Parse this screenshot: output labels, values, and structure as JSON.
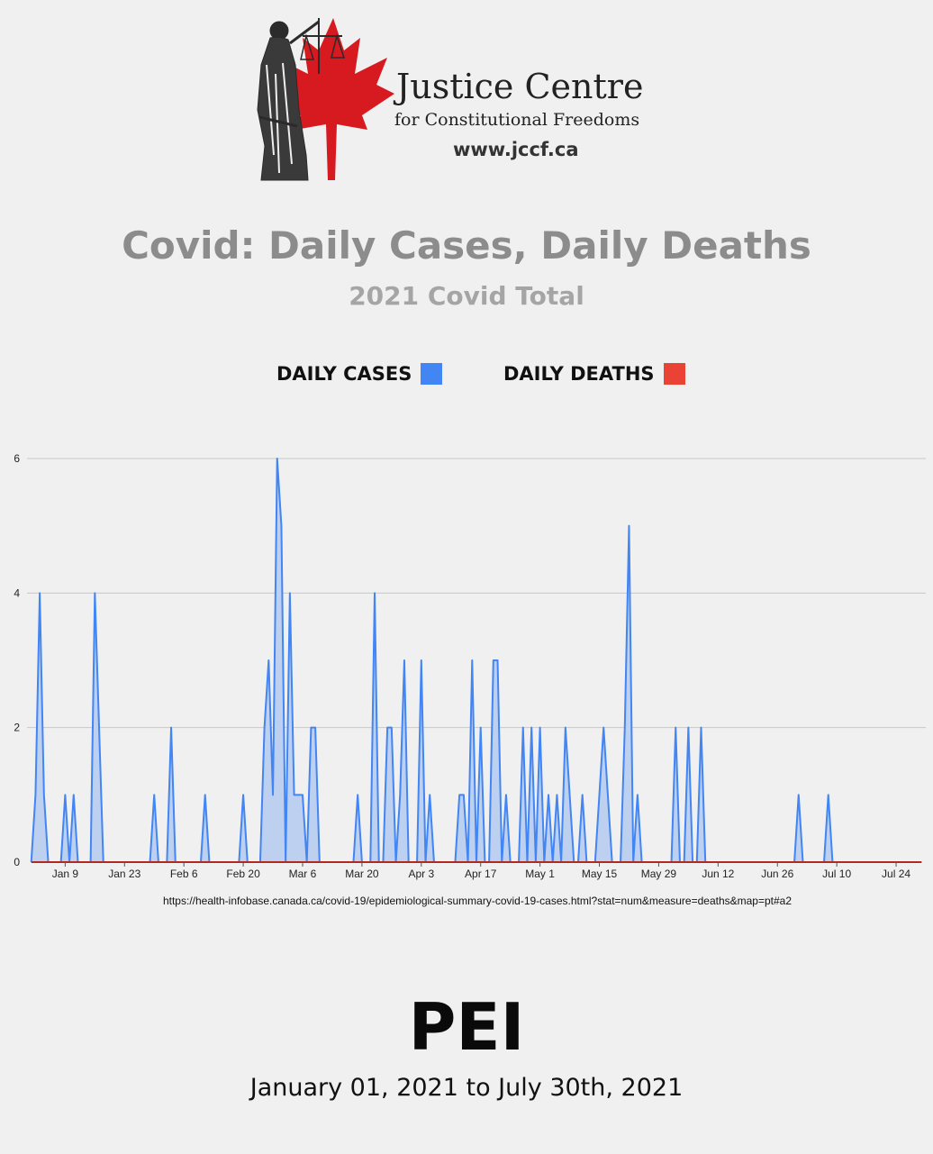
{
  "branding": {
    "org_name": "Justice Centre",
    "org_subtitle": "for Constitutional Freedoms",
    "website": "www.jccf.ca",
    "logo_icon": "maple-leaf-lady-justice-icon",
    "leaf_color": "#d71920"
  },
  "footer": {
    "source_url": "https://health-infobase.canada.ca/covid-19/epidemiological-summary-covid-19-cases.html?stat=num&measure=deaths&map=pt#a2",
    "region": "PEI",
    "date_range": "January 01, 2021 to July 30th, 2021"
  },
  "chart_data": {
    "type": "area",
    "title": "Covid: Daily Cases, Daily Deaths",
    "subtitle": "2021 Covid Total",
    "x_start": "2021-01-01",
    "x_end": "2021-07-30",
    "xlim": [
      "2020-12-31",
      "2021-07-31"
    ],
    "ylim": [
      0,
      6
    ],
    "y_ticks": [
      "0",
      "2",
      "4",
      "6"
    ],
    "x_tick_dates": [
      "2021-01-09",
      "2021-01-23",
      "2021-02-06",
      "2021-02-20",
      "2021-03-06",
      "2021-03-20",
      "2021-04-03",
      "2021-04-17",
      "2021-05-01",
      "2021-05-15",
      "2021-05-29",
      "2021-06-12",
      "2021-06-26",
      "2021-07-10",
      "2021-07-24"
    ],
    "x_tick_labels": [
      "Jan 9",
      "Jan 23",
      "Feb 6",
      "Feb 20",
      "Mar 6",
      "Mar 20",
      "Apr 3",
      "Apr 17",
      "May 1",
      "May 15",
      "May 29",
      "Jun 12",
      "Jun 26",
      "Jul 10",
      "Jul 24"
    ],
    "grid": true,
    "legend_position": "top",
    "series": [
      {
        "name": "DAILY CASES",
        "color": "#4285f4",
        "fill": "#bdd0f0",
        "points": [
          [
            "2021-01-01",
            0
          ],
          [
            "2021-01-02",
            1
          ],
          [
            "2021-01-03",
            4
          ],
          [
            "2021-01-04",
            1
          ],
          [
            "2021-01-05",
            0
          ],
          [
            "2021-01-08",
            0
          ],
          [
            "2021-01-09",
            1
          ],
          [
            "2021-01-10",
            0
          ],
          [
            "2021-01-11",
            1
          ],
          [
            "2021-01-12",
            0
          ],
          [
            "2021-01-15",
            0
          ],
          [
            "2021-01-16",
            4
          ],
          [
            "2021-01-17",
            2
          ],
          [
            "2021-01-18",
            0
          ],
          [
            "2021-01-29",
            0
          ],
          [
            "2021-01-30",
            1
          ],
          [
            "2021-01-31",
            0
          ],
          [
            "2021-02-02",
            0
          ],
          [
            "2021-02-03",
            2
          ],
          [
            "2021-02-04",
            0
          ],
          [
            "2021-02-10",
            0
          ],
          [
            "2021-02-11",
            1
          ],
          [
            "2021-02-12",
            0
          ],
          [
            "2021-02-19",
            0
          ],
          [
            "2021-02-20",
            1
          ],
          [
            "2021-02-21",
            0
          ],
          [
            "2021-02-24",
            0
          ],
          [
            "2021-02-25",
            2
          ],
          [
            "2021-02-26",
            3
          ],
          [
            "2021-02-27",
            1
          ],
          [
            "2021-02-28",
            6
          ],
          [
            "2021-03-01",
            5
          ],
          [
            "2021-03-02",
            0
          ],
          [
            "2021-03-03",
            4
          ],
          [
            "2021-03-04",
            1
          ],
          [
            "2021-03-05",
            1
          ],
          [
            "2021-03-06",
            1
          ],
          [
            "2021-03-07",
            0
          ],
          [
            "2021-03-08",
            2
          ],
          [
            "2021-03-09",
            2
          ],
          [
            "2021-03-10",
            0
          ],
          [
            "2021-03-18",
            0
          ],
          [
            "2021-03-19",
            1
          ],
          [
            "2021-03-20",
            0
          ],
          [
            "2021-03-22",
            0
          ],
          [
            "2021-03-23",
            4
          ],
          [
            "2021-03-24",
            0
          ],
          [
            "2021-03-25",
            0
          ],
          [
            "2021-03-26",
            2
          ],
          [
            "2021-03-27",
            2
          ],
          [
            "2021-03-28",
            0
          ],
          [
            "2021-03-29",
            1
          ],
          [
            "2021-03-30",
            3
          ],
          [
            "2021-03-31",
            0
          ],
          [
            "2021-04-02",
            0
          ],
          [
            "2021-04-03",
            3
          ],
          [
            "2021-04-04",
            0
          ],
          [
            "2021-04-05",
            1
          ],
          [
            "2021-04-06",
            0
          ],
          [
            "2021-04-11",
            0
          ],
          [
            "2021-04-12",
            1
          ],
          [
            "2021-04-13",
            1
          ],
          [
            "2021-04-14",
            0
          ],
          [
            "2021-04-15",
            3
          ],
          [
            "2021-04-16",
            0
          ],
          [
            "2021-04-17",
            2
          ],
          [
            "2021-04-18",
            0
          ],
          [
            "2021-04-19",
            0
          ],
          [
            "2021-04-20",
            3
          ],
          [
            "2021-04-21",
            3
          ],
          [
            "2021-04-22",
            0
          ],
          [
            "2021-04-23",
            1
          ],
          [
            "2021-04-24",
            0
          ],
          [
            "2021-04-26",
            0
          ],
          [
            "2021-04-27",
            2
          ],
          [
            "2021-04-28",
            0
          ],
          [
            "2021-04-29",
            2
          ],
          [
            "2021-04-30",
            0
          ],
          [
            "2021-05-01",
            2
          ],
          [
            "2021-05-02",
            0
          ],
          [
            "2021-05-03",
            1
          ],
          [
            "2021-05-04",
            0
          ],
          [
            "2021-05-05",
            1
          ],
          [
            "2021-05-06",
            0
          ],
          [
            "2021-05-07",
            2
          ],
          [
            "2021-05-08",
            1
          ],
          [
            "2021-05-09",
            0
          ],
          [
            "2021-05-10",
            0
          ],
          [
            "2021-05-11",
            1
          ],
          [
            "2021-05-12",
            0
          ],
          [
            "2021-05-14",
            0
          ],
          [
            "2021-05-15",
            1
          ],
          [
            "2021-05-16",
            2
          ],
          [
            "2021-05-17",
            1
          ],
          [
            "2021-05-18",
            0
          ],
          [
            "2021-05-20",
            0
          ],
          [
            "2021-05-21",
            2
          ],
          [
            "2021-05-22",
            5
          ],
          [
            "2021-05-23",
            0
          ],
          [
            "2021-05-24",
            1
          ],
          [
            "2021-05-25",
            0
          ],
          [
            "2021-06-01",
            0
          ],
          [
            "2021-06-02",
            2
          ],
          [
            "2021-06-03",
            0
          ],
          [
            "2021-06-04",
            0
          ],
          [
            "2021-06-05",
            2
          ],
          [
            "2021-06-06",
            0
          ],
          [
            "2021-06-07",
            0
          ],
          [
            "2021-06-08",
            2
          ],
          [
            "2021-06-09",
            0
          ],
          [
            "2021-06-30",
            0
          ],
          [
            "2021-07-01",
            1
          ],
          [
            "2021-07-02",
            0
          ],
          [
            "2021-07-07",
            0
          ],
          [
            "2021-07-08",
            1
          ],
          [
            "2021-07-09",
            0
          ],
          [
            "2021-07-30",
            0
          ]
        ]
      },
      {
        "name": "DAILY DEATHS",
        "color": "#ea4335",
        "points": [
          [
            "2021-01-01",
            0
          ],
          [
            "2021-07-30",
            0
          ]
        ]
      }
    ]
  }
}
